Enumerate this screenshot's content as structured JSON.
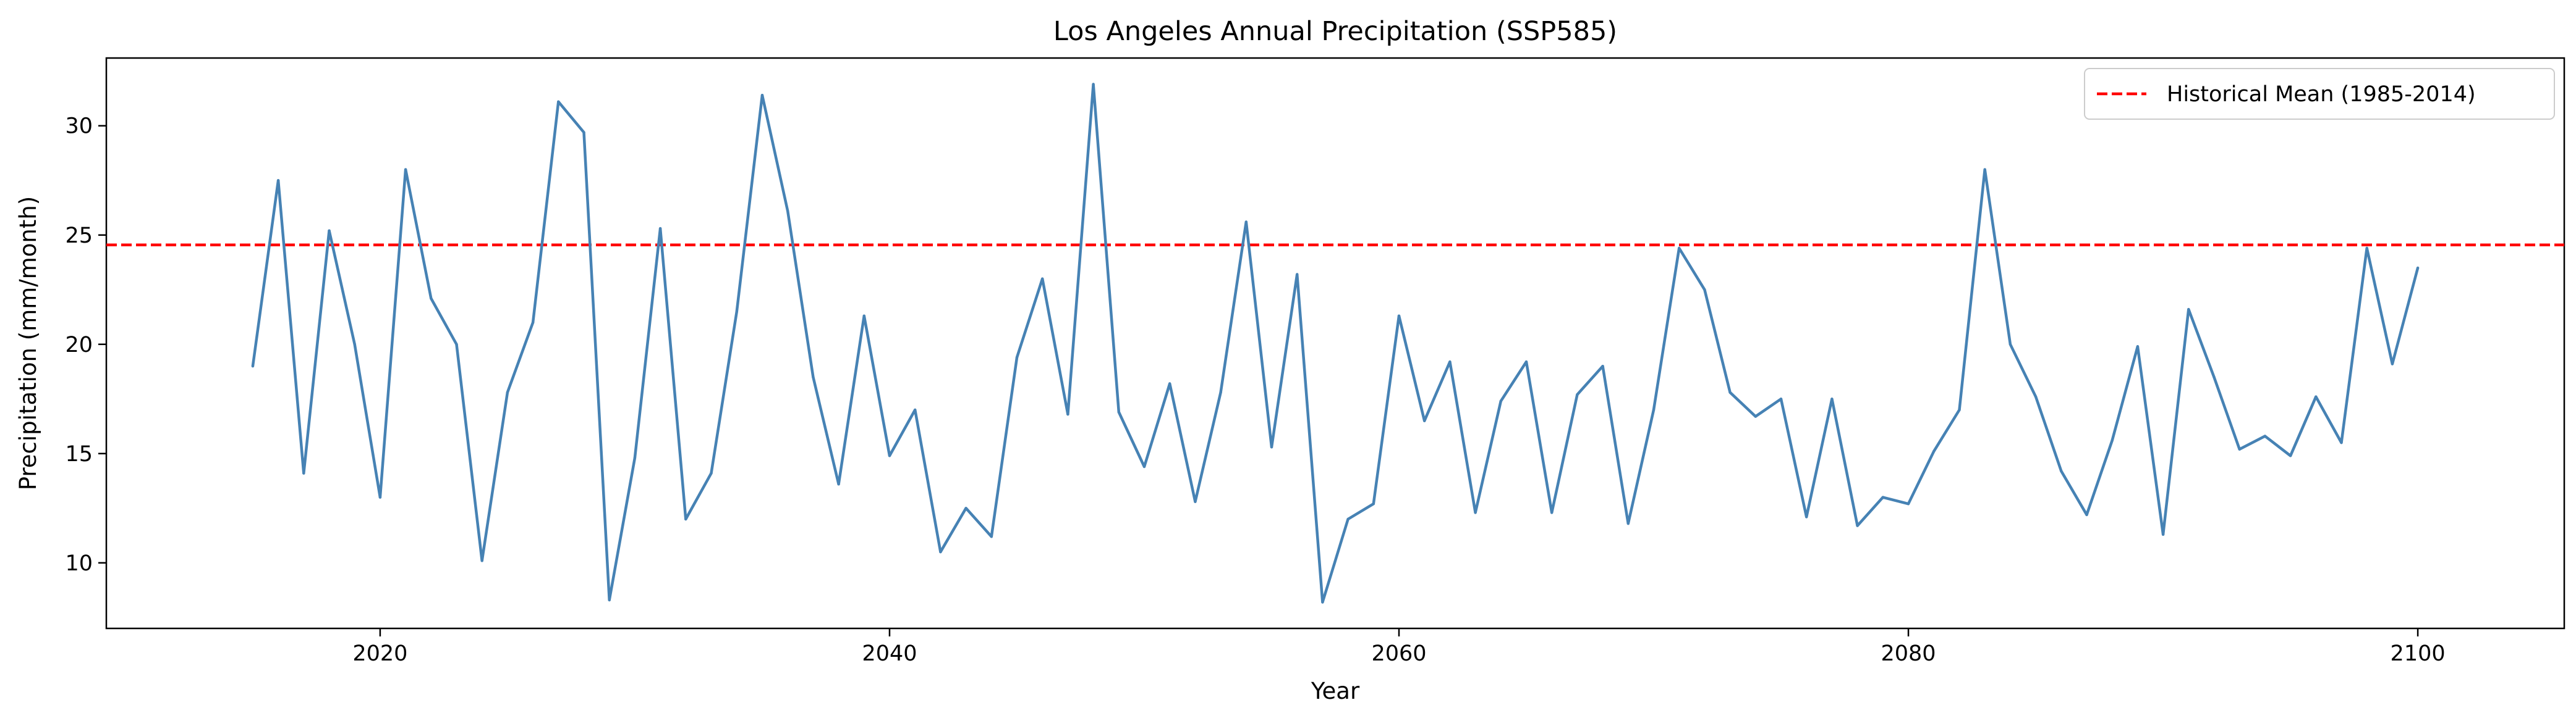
{
  "chart_data": {
    "type": "line",
    "title": "Los Angeles Annual Precipitation (SSP585)",
    "xlabel": "Year",
    "ylabel": "Precipitation (mm/month)",
    "xlim": [
      2009.25,
      2105.75
    ],
    "ylim": [
      7.0,
      33.1
    ],
    "xticks": [
      2020,
      2040,
      2060,
      2080,
      2100
    ],
    "yticks": [
      10,
      15,
      20,
      25,
      30
    ],
    "grid": false,
    "legend_position": "top-right",
    "series": [
      {
        "color": "#4682b4",
        "x": [
          2015,
          2016,
          2017,
          2018,
          2019,
          2020,
          2021,
          2022,
          2023,
          2024,
          2025,
          2026,
          2027,
          2028,
          2029,
          2030,
          2031,
          2032,
          2033,
          2034,
          2035,
          2036,
          2037,
          2038,
          2039,
          2040,
          2041,
          2042,
          2043,
          2044,
          2045,
          2046,
          2047,
          2048,
          2049,
          2050,
          2051,
          2052,
          2053,
          2054,
          2055,
          2056,
          2057,
          2058,
          2059,
          2060,
          2061,
          2062,
          2063,
          2064,
          2065,
          2066,
          2067,
          2068,
          2069,
          2070,
          2071,
          2072,
          2073,
          2074,
          2075,
          2076,
          2077,
          2078,
          2079,
          2080,
          2081,
          2082,
          2083,
          2084,
          2085,
          2086,
          2087,
          2088,
          2089,
          2090,
          2091,
          2092,
          2093,
          2094,
          2095,
          2096,
          2097,
          2098,
          2099,
          2100
        ],
        "values": [
          19.0,
          27.5,
          14.1,
          25.2,
          20.0,
          13.0,
          28.0,
          22.1,
          20.0,
          10.1,
          17.8,
          21.0,
          31.1,
          29.7,
          8.3,
          14.8,
          25.3,
          12.0,
          14.1,
          21.5,
          31.4,
          26.1,
          18.5,
          13.6,
          21.3,
          14.9,
          17.0,
          10.5,
          12.5,
          11.2,
          19.4,
          23.0,
          16.8,
          31.9,
          16.9,
          14.4,
          18.2,
          12.8,
          17.8,
          25.6,
          15.3,
          23.2,
          8.2,
          12.0,
          12.7,
          21.3,
          16.5,
          19.2,
          12.3,
          17.4,
          19.2,
          12.3,
          17.7,
          19.0,
          11.8,
          17.0,
          24.4,
          22.5,
          17.8,
          16.7,
          17.5,
          12.1,
          17.5,
          11.7,
          13.0,
          12.7,
          15.1,
          17.0,
          28.0,
          20.0,
          17.6,
          14.2,
          12.2,
          15.6,
          19.9,
          11.3,
          21.6,
          18.5,
          15.2,
          15.8,
          14.9,
          17.6,
          15.5,
          24.4,
          19.1,
          23.5
        ]
      }
    ],
    "reference_lines": [
      {
        "name": "Historical Mean (1985-2014)",
        "value": 24.55,
        "color": "#ff0000",
        "style": "dashed"
      }
    ]
  }
}
